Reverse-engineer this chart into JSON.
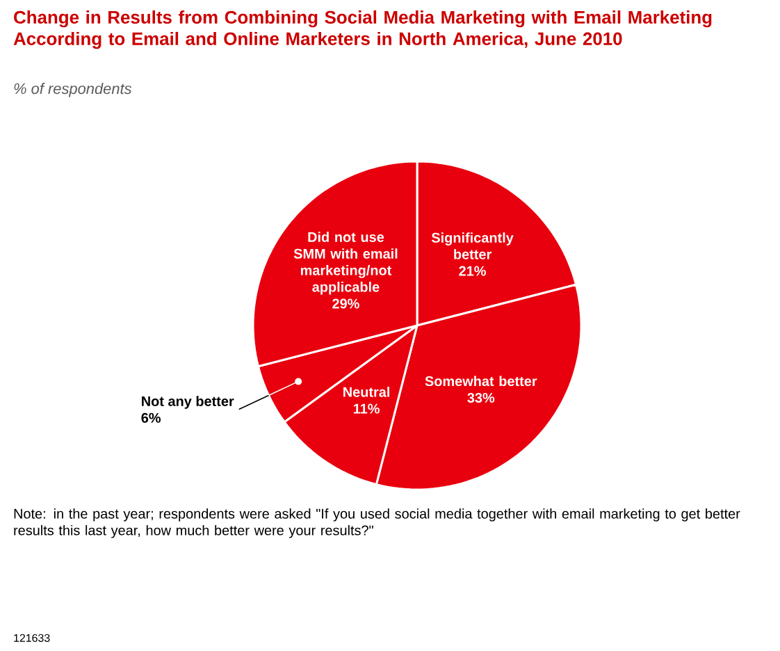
{
  "chart_data": {
    "type": "pie",
    "title": "Change in Results from Combining Social Media Marketing with Email Marketing According to Email and Online Marketers in North America, June 2010",
    "subtitle": "% of respondents",
    "categories": [
      "Significantly better",
      "Somewhat better",
      "Neutral",
      "Not any better",
      "Did not use SMM with email marketing/not applicable"
    ],
    "values": [
      21,
      33,
      11,
      6,
      29
    ],
    "value_labels": [
      "21%",
      "33%",
      "11%",
      "6%",
      "29%"
    ],
    "colors": [
      "#e8000e",
      "#e8000e",
      "#e8000e",
      "#e8000e",
      "#e8000e"
    ],
    "annotations": [
      "Note: in the past year; respondents were asked \"If you used social media together with email marketing to get better results this last year, how much better were your results?\"",
      "121633"
    ]
  }
}
